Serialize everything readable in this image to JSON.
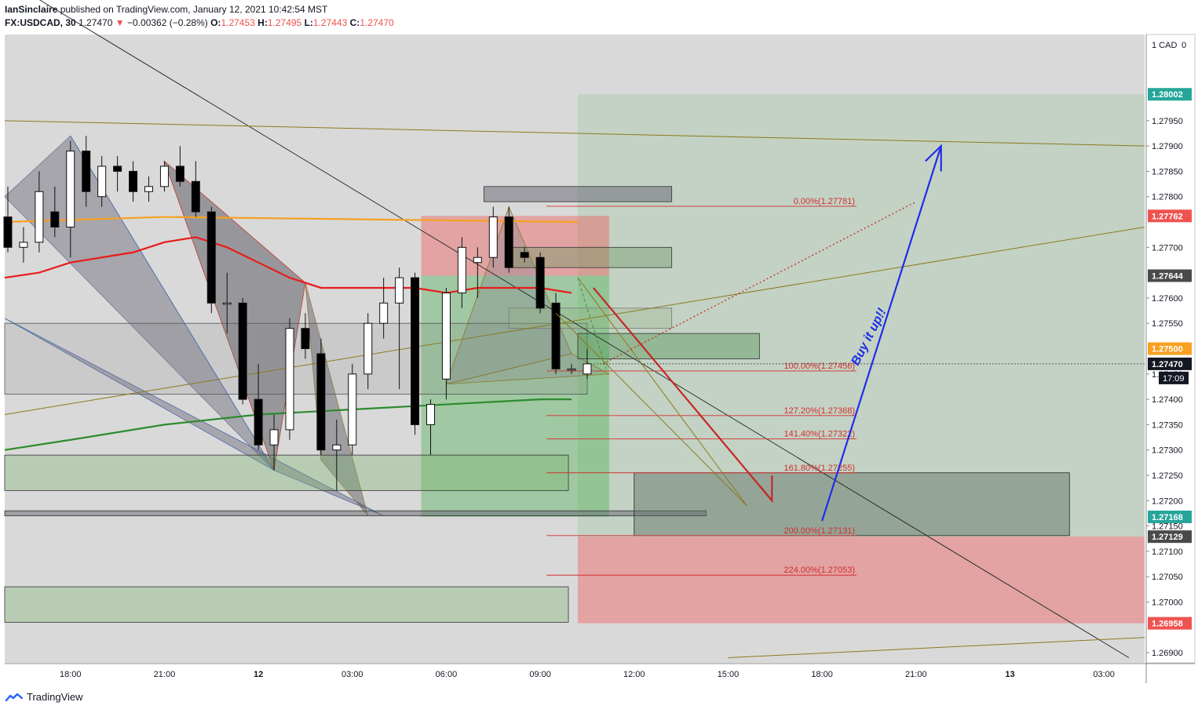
{
  "header": {
    "author": "IanSinclaire",
    "published_line": " published on TradingView.com, January 12, 2021 10:42:54 MST",
    "symbol": "FX:USDCAD, 30",
    "last": "1.27470",
    "change_arrow": "▼",
    "change": "−0.00362 (−0.28%)",
    "o_label": "O:",
    "o_val": "1.27453",
    "h_label": "H:",
    "h_val": "1.27495",
    "l_label": "L:",
    "l_val": "1.27443",
    "c_label": "C:",
    "c_val": "1.27470"
  },
  "footer": {
    "brand": "TradingView"
  },
  "colors": {
    "background": "#d9d9d9",
    "up_candle": "#ffffff",
    "down_candle": "#000000",
    "ema_red": "#e81b1b",
    "ema_orange": "#f7a021",
    "ema_green": "#2e8b2e",
    "fib_red": "#d32f2f",
    "blue_arrow": "#1e2ee8",
    "trend_olive": "#8b7a1e"
  },
  "chart_data": {
    "type": "candlestick",
    "symbol": "FX:USDCAD",
    "interval": "30",
    "y_axis_unit": "CAD",
    "y_axis_scale_top": "0",
    "ylim": [
      1.2688,
      1.2812
    ],
    "y_ticks": [
      "1.27950",
      "1.27900",
      "1.27850",
      "1.27800",
      "1.27700",
      "1.27600",
      "1.27550",
      "1.27450",
      "1.27400",
      "1.27350",
      "1.27300",
      "1.27250",
      "1.27200",
      "1.27150",
      "1.27100",
      "1.27050",
      "1.27000",
      "1.26900"
    ],
    "x_ticks": [
      {
        "label": "18:00",
        "hours": 0
      },
      {
        "label": "21:00",
        "hours": 3
      },
      {
        "label": "12",
        "hours": 6
      },
      {
        "label": "03:00",
        "hours": 9
      },
      {
        "label": "06:00",
        "hours": 12
      },
      {
        "label": "09:00",
        "hours": 15
      },
      {
        "label": "12:00",
        "hours": 18
      },
      {
        "label": "15:00",
        "hours": 21
      },
      {
        "label": "18:00",
        "hours": 24
      },
      {
        "label": "21:00",
        "hours": 27
      },
      {
        "label": "13",
        "hours": 30
      },
      {
        "label": "03:00",
        "hours": 33
      }
    ],
    "x_range_hours": [
      -2.1,
      34.3
    ],
    "candles": [
      {
        "t": -2.0,
        "o": 1.2776,
        "h": 1.2782,
        "l": 1.2769,
        "c": 1.277
      },
      {
        "t": -1.5,
        "o": 1.277,
        "h": 1.2774,
        "l": 1.2767,
        "c": 1.2771
      },
      {
        "t": -1.0,
        "o": 1.2771,
        "h": 1.2785,
        "l": 1.2769,
        "c": 1.2781
      },
      {
        "t": -0.5,
        "o": 1.2777,
        "h": 1.2782,
        "l": 1.2772,
        "c": 1.2774
      },
      {
        "t": 0.0,
        "o": 1.2774,
        "h": 1.2791,
        "l": 1.2768,
        "c": 1.2789
      },
      {
        "t": 0.5,
        "o": 1.2789,
        "h": 1.2792,
        "l": 1.2778,
        "c": 1.2781
      },
      {
        "t": 1.0,
        "o": 1.278,
        "h": 1.2788,
        "l": 1.2778,
        "c": 1.2786
      },
      {
        "t": 1.5,
        "o": 1.2786,
        "h": 1.2788,
        "l": 1.2781,
        "c": 1.2785
      },
      {
        "t": 2.0,
        "o": 1.2785,
        "h": 1.2787,
        "l": 1.2779,
        "c": 1.2781
      },
      {
        "t": 2.5,
        "o": 1.2781,
        "h": 1.2784,
        "l": 1.2779,
        "c": 1.2782
      },
      {
        "t": 3.0,
        "o": 1.2782,
        "h": 1.2787,
        "l": 1.2781,
        "c": 1.2786
      },
      {
        "t": 3.5,
        "o": 1.2786,
        "h": 1.279,
        "l": 1.2782,
        "c": 1.2783
      },
      {
        "t": 4.0,
        "o": 1.2783,
        "h": 1.2787,
        "l": 1.2776,
        "c": 1.2777
      },
      {
        "t": 4.5,
        "o": 1.2777,
        "h": 1.2778,
        "l": 1.2757,
        "c": 1.2759
      },
      {
        "t": 5.0,
        "o": 1.2759,
        "h": 1.2765,
        "l": 1.2753,
        "c": 1.2759
      },
      {
        "t": 5.5,
        "o": 1.2759,
        "h": 1.276,
        "l": 1.2739,
        "c": 1.274
      },
      {
        "t": 6.0,
        "o": 1.274,
        "h": 1.2747,
        "l": 1.273,
        "c": 1.2731
      },
      {
        "t": 6.5,
        "o": 1.2731,
        "h": 1.2737,
        "l": 1.2726,
        "c": 1.2734
      },
      {
        "t": 7.0,
        "o": 1.2734,
        "h": 1.2756,
        "l": 1.2732,
        "c": 1.2754
      },
      {
        "t": 7.5,
        "o": 1.2754,
        "h": 1.2757,
        "l": 1.2748,
        "c": 1.275
      },
      {
        "t": 8.0,
        "o": 1.2749,
        "h": 1.2752,
        "l": 1.2729,
        "c": 1.273
      },
      {
        "t": 8.5,
        "o": 1.273,
        "h": 1.2736,
        "l": 1.2722,
        "c": 1.2731
      },
      {
        "t": 9.0,
        "o": 1.2731,
        "h": 1.2747,
        "l": 1.2729,
        "c": 1.2745
      },
      {
        "t": 9.5,
        "o": 1.2745,
        "h": 1.2757,
        "l": 1.2742,
        "c": 1.2755
      },
      {
        "t": 10.0,
        "o": 1.2755,
        "h": 1.2764,
        "l": 1.2752,
        "c": 1.2759
      },
      {
        "t": 10.5,
        "o": 1.2759,
        "h": 1.2766,
        "l": 1.2742,
        "c": 1.2764
      },
      {
        "t": 11.0,
        "o": 1.2764,
        "h": 1.2765,
        "l": 1.2733,
        "c": 1.2735
      },
      {
        "t": 11.5,
        "o": 1.2735,
        "h": 1.274,
        "l": 1.2729,
        "c": 1.2739
      },
      {
        "t": 12.0,
        "o": 1.2744,
        "h": 1.2762,
        "l": 1.274,
        "c": 1.2761
      },
      {
        "t": 12.5,
        "o": 1.2761,
        "h": 1.2772,
        "l": 1.2758,
        "c": 1.277
      },
      {
        "t": 13.0,
        "o": 1.2767,
        "h": 1.277,
        "l": 1.276,
        "c": 1.2768
      },
      {
        "t": 13.5,
        "o": 1.2768,
        "h": 1.2778,
        "l": 1.2766,
        "c": 1.2776
      },
      {
        "t": 14.0,
        "o": 1.2776,
        "h": 1.2778,
        "l": 1.2765,
        "c": 1.2766
      },
      {
        "t": 14.5,
        "o": 1.2769,
        "h": 1.277,
        "l": 1.2767,
        "c": 1.2768
      },
      {
        "t": 15.0,
        "o": 1.2768,
        "h": 1.2769,
        "l": 1.2757,
        "c": 1.2758
      },
      {
        "t": 15.5,
        "o": 1.2759,
        "h": 1.2761,
        "l": 1.2745,
        "c": 1.2746
      },
      {
        "t": 16.0,
        "o": 1.2746,
        "h": 1.2747,
        "l": 1.2745,
        "c": 1.2746
      },
      {
        "t": 16.5,
        "o": 1.2745,
        "h": 1.275,
        "l": 1.2744,
        "c": 1.2747
      }
    ],
    "moving_averages": [
      {
        "color_key": "ema_orange",
        "points": [
          [
            -2.1,
            1.2775
          ],
          [
            3,
            1.2776
          ],
          [
            16.2,
            1.2775
          ]
        ]
      },
      {
        "color_key": "ema_red",
        "points": [
          [
            -2.1,
            1.2764
          ],
          [
            -1,
            1.2765
          ],
          [
            0,
            1.2767
          ],
          [
            2,
            1.2769
          ],
          [
            3,
            1.2771
          ],
          [
            4,
            1.2772
          ],
          [
            5,
            1.277
          ],
          [
            6,
            1.2767
          ],
          [
            7,
            1.2764
          ],
          [
            8,
            1.2762
          ],
          [
            10,
            1.2762
          ],
          [
            11,
            1.2762
          ],
          [
            12,
            1.2761
          ],
          [
            13,
            1.2762
          ],
          [
            15,
            1.2762
          ],
          [
            16,
            1.2761
          ]
        ]
      },
      {
        "color_key": "ema_green",
        "points": [
          [
            -2.1,
            1.273
          ],
          [
            0,
            1.2732
          ],
          [
            3,
            1.2735
          ],
          [
            6,
            1.2737
          ],
          [
            9,
            1.2738
          ],
          [
            12,
            1.2739
          ],
          [
            15,
            1.274
          ],
          [
            16,
            1.274
          ]
        ]
      }
    ],
    "fib_levels": [
      {
        "label": "0.00%(1.27781)",
        "price": 1.27781
      },
      {
        "label": "100.00%(1.27456)",
        "price": 1.27456
      },
      {
        "label": "127.20%(1.27368)",
        "price": 1.27368
      },
      {
        "label": "141.40%(1.27322)",
        "price": 1.27322
      },
      {
        "label": "161.80%(1.27255)",
        "price": 1.27255
      },
      {
        "label": "200.00%(1.27131)",
        "price": 1.27131
      },
      {
        "label": "224.00%(1.27053)",
        "price": 1.27053
      }
    ],
    "price_tags": [
      {
        "label": "1.28002",
        "price": 1.28002,
        "bg": "#26a69a"
      },
      {
        "label": "1.27762",
        "price": 1.27762,
        "bg": "#ef5350"
      },
      {
        "label": "1.27644",
        "price": 1.27644,
        "bg": "#4a4a4a"
      },
      {
        "label": "1.27500",
        "price": 1.275,
        "bg": "#f7a021"
      },
      {
        "label": "1.27470",
        "price": 1.2747,
        "bg": "#131722"
      },
      {
        "label": "1.27168",
        "price": 1.27168,
        "bg": "#26a69a"
      },
      {
        "label": "1.27129",
        "price": 1.27129,
        "bg": "#4a4a4a"
      },
      {
        "label": "1.26958",
        "price": 1.26958,
        "bg": "#ef5350"
      }
    ],
    "countdown": "17:09",
    "annotations": [
      {
        "text": "Buy it up!!",
        "color_key": "blue_arrow"
      }
    ]
  }
}
